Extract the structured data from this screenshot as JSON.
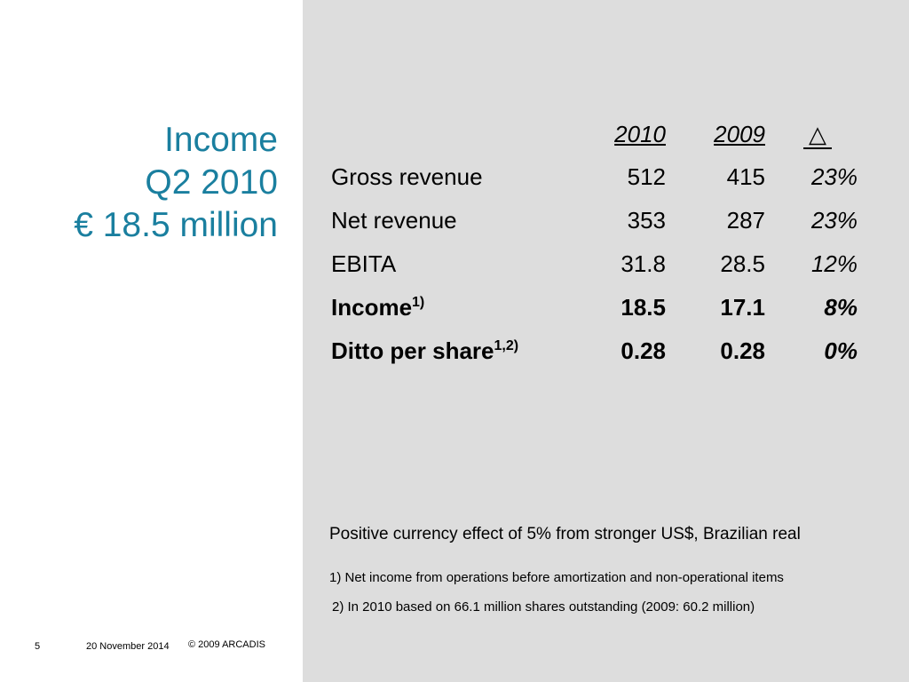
{
  "title": {
    "line1": "Income",
    "line2": "Q2 2010",
    "line3": "€ 18.5 million"
  },
  "table": {
    "headers": {
      "col2010": "2010",
      "col2009": "2009",
      "delta": "△"
    },
    "rows": [
      {
        "label": "Gross revenue",
        "sup": "",
        "v2010": "512",
        "v2009": "415",
        "delta": "23%"
      },
      {
        "label": "Net revenue",
        "sup": "",
        "v2010": "353",
        "v2009": "287",
        "delta": "23%"
      },
      {
        "label": "EBITA",
        "sup": "",
        "v2010": "31.8",
        "v2009": "28.5",
        "delta": "12%"
      },
      {
        "label": "Income",
        "sup": "1)",
        "v2010": "18.5",
        "v2009": "17.1",
        "delta": "8%"
      },
      {
        "label": "Ditto per share",
        "sup": "1,2)",
        "v2010": "0.28",
        "v2009": "0.28",
        "delta": "0%"
      }
    ]
  },
  "note": "Positive currency effect of 5% from stronger US$, Brazilian real",
  "footnotes": [
    "1) Net income from operations before amortization and non-operational items",
    "2) In 2010 based on 66.1 million shares outstanding (2009: 60.2 million)"
  ],
  "footer": {
    "page": "5",
    "date": "20 November 2014",
    "copyright": "© 2009 ARCADIS"
  },
  "colors": {
    "title": "#1a7f9f",
    "right_panel": "#dddddd"
  }
}
